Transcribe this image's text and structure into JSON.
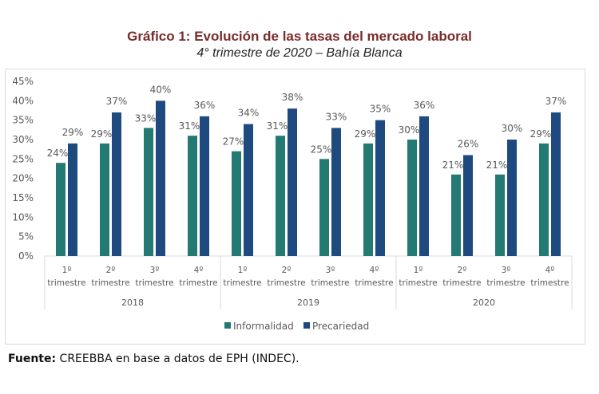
{
  "header": {
    "title": "Gráfico 1: Evolución de las tasas del mercado laboral",
    "subtitle": "4° trimestre de 2020 – Bahía Blanca"
  },
  "footer": {
    "source_label": "Fuente:",
    "source_text": " CREEBBA en base a datos de EPH (INDEC)."
  },
  "colors": {
    "informalidad": "#237a72",
    "precariedad": "#1f4a80",
    "title": "#7a2b2b",
    "axis_text": "#595959"
  },
  "chart_data": {
    "type": "bar",
    "title": "Gráfico 1: Evolución de las tasas del mercado laboral",
    "subtitle": "4° trimestre de 2020 – Bahía Blanca",
    "xlabel": "",
    "ylabel": "",
    "ylim": [
      0,
      45
    ],
    "yticks": [
      "0%",
      "5%",
      "10%",
      "15%",
      "20%",
      "25%",
      "30%",
      "35%",
      "40%",
      "45%"
    ],
    "ytick_values": [
      0,
      5,
      10,
      15,
      20,
      25,
      30,
      35,
      40,
      45
    ],
    "grid": false,
    "legend_position": "bottom",
    "groups": [
      {
        "year": "2018",
        "quarters": [
          "1º trimestre",
          "2º trimestre",
          "3º trimestre",
          "4º trimestre"
        ]
      },
      {
        "year": "2019",
        "quarters": [
          "1º trimestre",
          "2º trimestre",
          "3º trimestre",
          "4º trimestre"
        ]
      },
      {
        "year": "2020",
        "quarters": [
          "1º trimestre",
          "2º trimestre",
          "3º trimestre",
          "4º trimestre"
        ]
      }
    ],
    "categories": [
      {
        "q": "1º",
        "l": "trimestre",
        "year": "2018"
      },
      {
        "q": "2º",
        "l": "trimestre",
        "year": "2018"
      },
      {
        "q": "3º",
        "l": "trimestre",
        "year": "2018"
      },
      {
        "q": "4º",
        "l": "trimestre",
        "year": "2018"
      },
      {
        "q": "1º",
        "l": "trimestre",
        "year": "2019"
      },
      {
        "q": "2º",
        "l": "trimestre",
        "year": "2019"
      },
      {
        "q": "3º",
        "l": "trimestre",
        "year": "2019"
      },
      {
        "q": "4º",
        "l": "trimestre",
        "year": "2019"
      },
      {
        "q": "1º",
        "l": "trimestre",
        "year": "2020"
      },
      {
        "q": "2º",
        "l": "trimestre",
        "year": "2020"
      },
      {
        "q": "3º",
        "l": "trimestre",
        "year": "2020"
      },
      {
        "q": "4º",
        "l": "trimestre",
        "year": "2020"
      }
    ],
    "series": [
      {
        "name": "Informalidad",
        "values": [
          24,
          29,
          33,
          31,
          27,
          31,
          25,
          29,
          30,
          21,
          21,
          29
        ]
      },
      {
        "name": "Precariedad",
        "values": [
          29,
          37,
          40,
          36,
          34,
          38,
          33,
          35,
          36,
          26,
          30,
          37
        ]
      }
    ],
    "value_suffix": "%"
  }
}
